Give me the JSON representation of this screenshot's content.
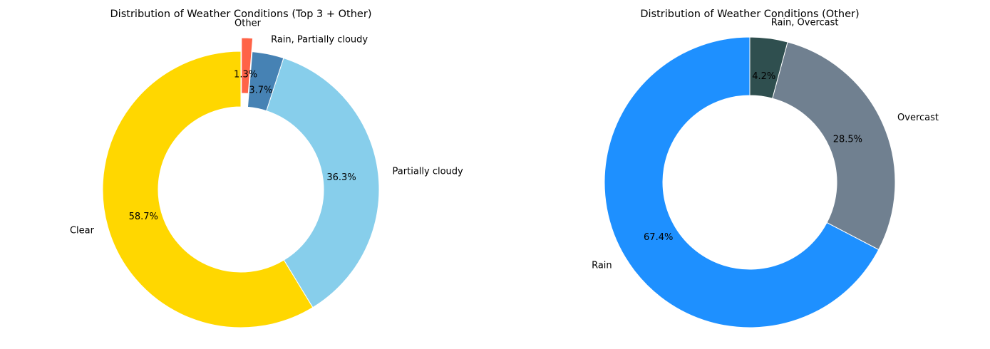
{
  "chart_data": [
    {
      "type": "pie",
      "donut": true,
      "title": "Distribution of Weather Conditions (Top 3 + Other)",
      "start_angle_deg": 90,
      "direction": "clockwise",
      "slices": [
        {
          "label": "Other",
          "value": 1.3,
          "pct_label": "1.3%",
          "color": "#FF6347",
          "explode": true
        },
        {
          "label": "Rain, Partially cloudy",
          "value": 3.7,
          "pct_label": "3.7%",
          "color": "#4682B4"
        },
        {
          "label": "Partially cloudy",
          "value": 36.3,
          "pct_label": "36.3%",
          "color": "#87CEEB"
        },
        {
          "label": "Clear",
          "value": 58.7,
          "pct_label": "58.7%",
          "color": "#FFD700"
        }
      ]
    },
    {
      "type": "pie",
      "donut": true,
      "title": "Distribution of Weather Conditions (Other)",
      "start_angle_deg": 90,
      "direction": "clockwise",
      "slices": [
        {
          "label": "Rain, Overcast",
          "value": 4.2,
          "pct_label": "4.2%",
          "color": "#2F4F4F"
        },
        {
          "label": "Overcast",
          "value": 28.5,
          "pct_label": "28.5%",
          "color": "#708090"
        },
        {
          "label": "Rain",
          "value": 67.4,
          "pct_label": "67.4%",
          "color": "#1E90FF"
        }
      ]
    }
  ]
}
